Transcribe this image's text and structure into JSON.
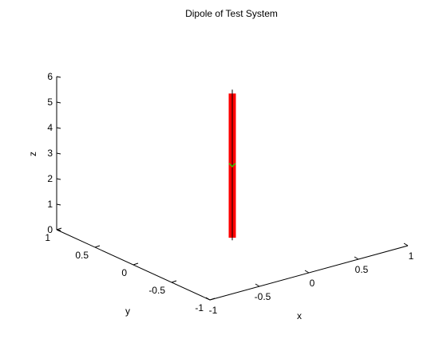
{
  "chart_data": {
    "type": "3d-line",
    "title": "Dipole of Test System",
    "xlabel": "x",
    "ylabel": "y",
    "zlabel": "z",
    "xlim": [
      -1,
      1
    ],
    "ylim": [
      -1,
      1
    ],
    "zlim": [
      0,
      6
    ],
    "grid": false,
    "x_ticks": [
      "-1",
      "-0.5",
      "0",
      "0.5",
      "1"
    ],
    "y_ticks": [
      "-1",
      "-0.5",
      "0",
      "0.5",
      "1"
    ],
    "z_ticks": [
      "0",
      "1",
      "2",
      "3",
      "4",
      "5",
      "6"
    ],
    "series": [
      {
        "color": "#ff0000",
        "style": "thick-bar",
        "points": [
          {
            "x": 0,
            "y": 0,
            "z": 0.0
          },
          {
            "x": 0,
            "y": 0,
            "z": 5.65
          }
        ]
      },
      {
        "color": "#000000",
        "style": "thin-line",
        "points": [
          {
            "x": 0,
            "y": 0,
            "z": -0.1
          },
          {
            "x": 0,
            "y": 0,
            "z": 5.8
          }
        ]
      },
      {
        "color": "#33cc00",
        "style": "marker",
        "points": [
          {
            "x": 0,
            "y": 0,
            "z": 2.85
          }
        ]
      }
    ]
  }
}
